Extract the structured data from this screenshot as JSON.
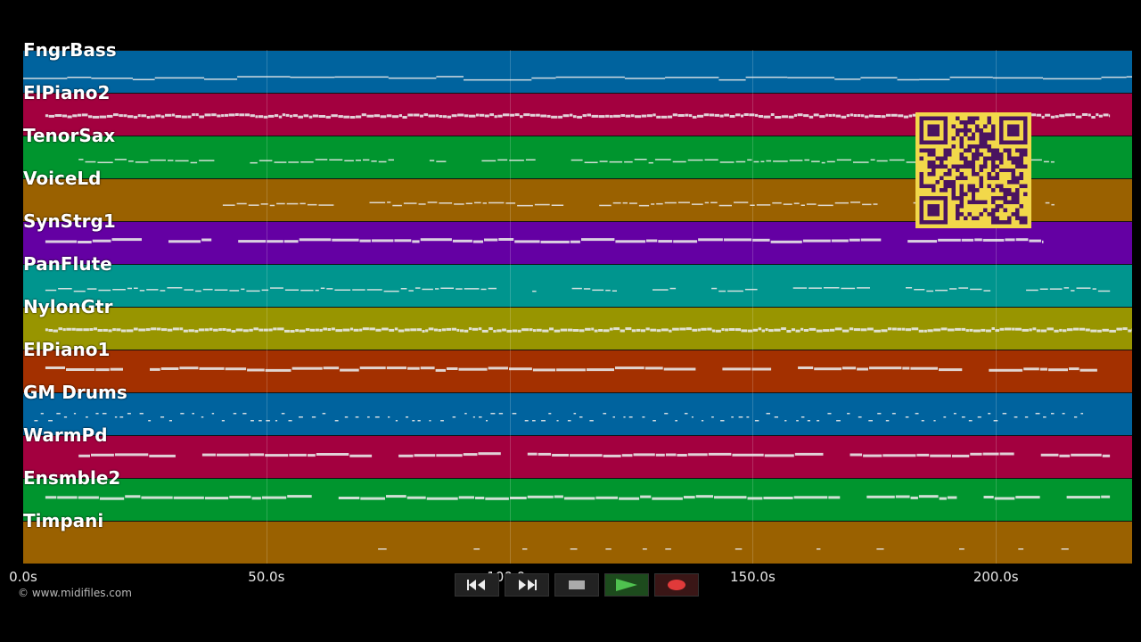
{
  "tracks": [
    {
      "name": "FngrBass",
      "color": "#00639e",
      "style": "line",
      "start": 0.0,
      "end": 1.0
    },
    {
      "name": "ElPiano2",
      "color": "#a3003f",
      "style": "dense",
      "start": 0.02,
      "end": 0.98
    },
    {
      "name": "TenorSax",
      "color": "#00952e",
      "style": "dash",
      "start": 0.05,
      "end": 0.93
    },
    {
      "name": "VoiceLd",
      "color": "#9a6100",
      "style": "dash",
      "start": 0.18,
      "end": 0.93
    },
    {
      "name": "SynStrg1",
      "color": "#6400a3",
      "style": "block",
      "start": 0.02,
      "end": 0.92
    },
    {
      "name": "PanFlute",
      "color": "#00958e",
      "style": "dash",
      "start": 0.02,
      "end": 0.98
    },
    {
      "name": "NylonGtr",
      "color": "#989500",
      "style": "dense",
      "start": 0.02,
      "end": 1.0
    },
    {
      "name": "ElPiano1",
      "color": "#a33000",
      "style": "block",
      "start": 0.02,
      "end": 0.98
    },
    {
      "name": "GM Drums",
      "color": "#00639e",
      "style": "dots",
      "start": 0.01,
      "end": 0.96
    },
    {
      "name": "WarmPd",
      "color": "#a3003f",
      "style": "block",
      "start": 0.05,
      "end": 0.98
    },
    {
      "name": "Ensmble2",
      "color": "#00952e",
      "style": "block",
      "start": 0.02,
      "end": 0.98
    },
    {
      "name": "Timpani",
      "color": "#9a6100",
      "style": "sparse",
      "start": 0.32,
      "end": 0.95
    }
  ],
  "timeline": {
    "ticks": [
      "0.0s",
      "50.0s",
      "100.0s",
      "150.0s",
      "200.0s"
    ],
    "tick_seconds": [
      0,
      50,
      100,
      150,
      200
    ],
    "max_seconds": 228
  },
  "copyright": "© www.midifiles.com",
  "transport": {
    "rewind_icon": "rewind-icon",
    "forward_icon": "fast-forward-icon",
    "stop_icon": "stop-icon",
    "play_icon": "play-icon",
    "record_icon": "record-icon"
  },
  "colors": {
    "background": "#000000",
    "note": "#e8e8e8",
    "qr_bg": "#f2d84a",
    "qr_fg": "#4a1460"
  }
}
